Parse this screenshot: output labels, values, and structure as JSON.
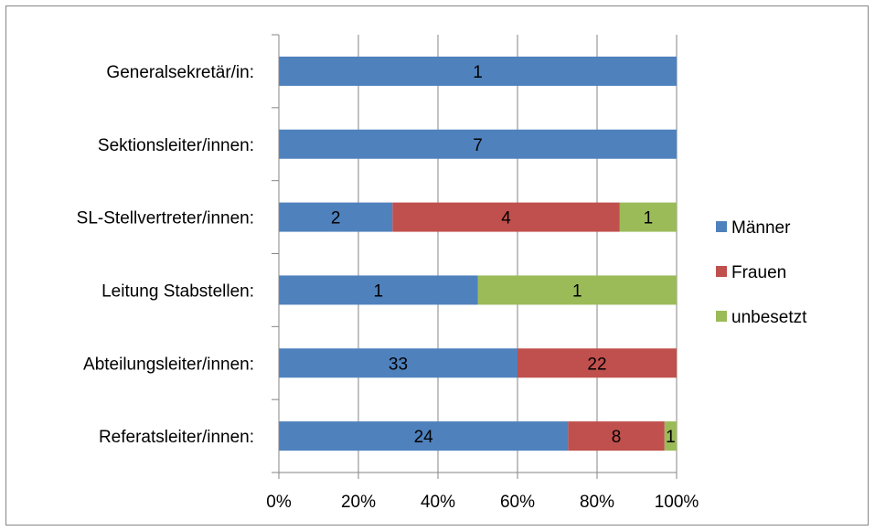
{
  "chart_data": {
    "type": "bar",
    "orientation": "horizontal",
    "stacked": "percent",
    "categories": [
      "Generalsekretär/in:",
      "Sektionsleiter/innen:",
      "SL-Stellvertreter/innen:",
      "Leitung Stabstellen:",
      "Abteilungsleiter/innen:",
      "Referatsleiter/innen:"
    ],
    "series": [
      {
        "name": "Männer",
        "color": "#4F81BD",
        "values": [
          1,
          7,
          2,
          1,
          33,
          24
        ]
      },
      {
        "name": "Frauen",
        "color": "#C0504D",
        "values": [
          0,
          0,
          4,
          0,
          22,
          8
        ]
      },
      {
        "name": "unbesetzt",
        "color": "#9BBB59",
        "values": [
          0,
          0,
          1,
          1,
          0,
          1
        ]
      }
    ],
    "x_ticks": [
      "0%",
      "20%",
      "40%",
      "60%",
      "80%",
      "100%"
    ],
    "xlim": [
      0,
      100
    ],
    "grid": "vertical",
    "legend_position": "right"
  }
}
